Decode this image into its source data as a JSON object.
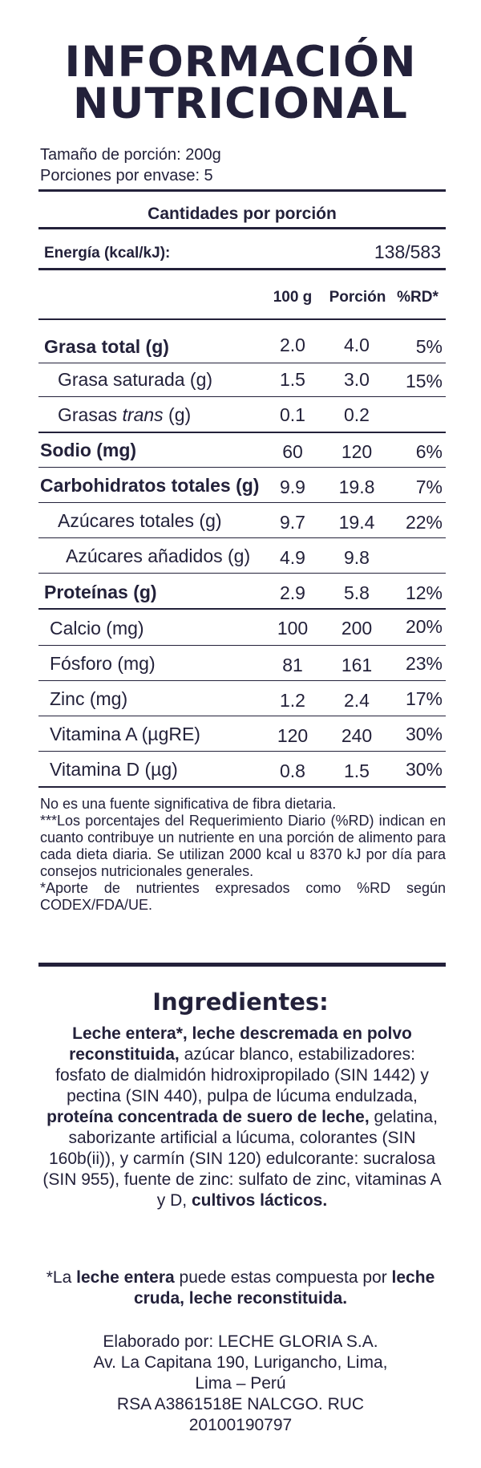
{
  "title": {
    "line1": "INFORMACIÓN",
    "line2": "NUTRICIONAL"
  },
  "serving": {
    "size": "Tamaño de porción: 200g",
    "per_package": "Porciones por envase: 5"
  },
  "amounts_header": "Cantidades por porción",
  "energy": {
    "label": "Energía (kcal/kJ):",
    "value": "138/583"
  },
  "columns": {
    "per100": "100 g",
    "portion": "Porción",
    "rd": "%RD*"
  },
  "rows": [
    {
      "label": "Grasa total (g)",
      "g100": "2.0",
      "portion": "4.0",
      "rd": "5%"
    },
    {
      "label": "Grasa saturada (g)",
      "g100": "1.5",
      "portion": "3.0",
      "rd": "15%"
    },
    {
      "label_prefix": "Grasas ",
      "label_italic": "trans",
      "label_suffix": " (g)",
      "g100": "0.1",
      "portion": "0.2",
      "rd": ""
    },
    {
      "label": "Sodio (mg)",
      "g100": "60",
      "portion": "120",
      "rd": "6%"
    },
    {
      "label": "Carbohidratos totales (g)",
      "g100": "9.9",
      "portion": "19.8",
      "rd": "7%"
    },
    {
      "label": "Azúcares totales (g)",
      "g100": "9.7",
      "portion": "19.4",
      "rd": "22%"
    },
    {
      "label": "Azúcares añadidos (g)",
      "g100": "4.9",
      "portion": "9.8",
      "rd": ""
    },
    {
      "label": "Proteínas (g)",
      "g100": "2.9",
      "portion": "5.8",
      "rd": "12%"
    },
    {
      "label": "Calcio (mg)",
      "g100": "100",
      "portion": "200",
      "rd": "20%"
    },
    {
      "label": "Fósforo (mg)",
      "g100": "81",
      "portion": "161",
      "rd": "23%"
    },
    {
      "label": "Zinc (mg)",
      "g100": "1.2",
      "portion": "2.4",
      "rd": "17%"
    },
    {
      "label": "Vitamina A (µgRE)",
      "g100": "120",
      "portion": "240",
      "rd": "30%"
    },
    {
      "label": "Vitamina D (µg)",
      "g100": "0.8",
      "portion": "1.5",
      "rd": "30%"
    }
  ],
  "notes": [
    "No es una fuente significativa de fibra dietaria.",
    "***Los porcentajes del Requerimiento Diario (%RD) indican en cuanto contribuye un nutriente en una porción de alimento para cada dieta diaria. Se utilizan 2000 kcal u 8370 kJ por día para consejos nutricionales generales.",
    "*Aporte de nutrientes expresados como %RD según CODEX/FDA/UE."
  ],
  "ingredients": {
    "title": "Ingredientes:",
    "parts": [
      {
        "text": "Leche entera*, leche descremada en polvo reconstituida,",
        "bold": true
      },
      {
        "text": " azúcar blanco, estabilizadores: fosfato de dialmidón hidroxipropilado (SIN 1442) y pectina (SIN 440), pulpa de lúcuma endulzada, ",
        "bold": false
      },
      {
        "text": "proteína concentrada de suero de leche,",
        "bold": true
      },
      {
        "text": " gelatina, saborizante artificial a lúcuma, colorantes (SIN 160b(ii)), y carmín (SIN 120) edulcorante: sucralosa (SIN 955), fuente de zinc: sulfato de zinc, vitaminas A y D, ",
        "bold": false
      },
      {
        "text": "cultivos lácticos.",
        "bold": true
      }
    ]
  },
  "whole_milk_note": {
    "p1": "*La ",
    "p2": "leche entera",
    "p3": " puede estas compuesta por ",
    "p4": "leche cruda, leche reconstituida."
  },
  "producer": {
    "line1": "Elaborado por: LECHE GLORIA S.A.",
    "line2": "Av. La Capitana 190, Lurigancho, Lima,",
    "line3": "Lima – Perú",
    "line4": "RSA A3861518E NALCGO. RUC",
    "line5": "20100190797"
  },
  "colors": {
    "ink": "#23213a",
    "background": "#ffffff"
  }
}
